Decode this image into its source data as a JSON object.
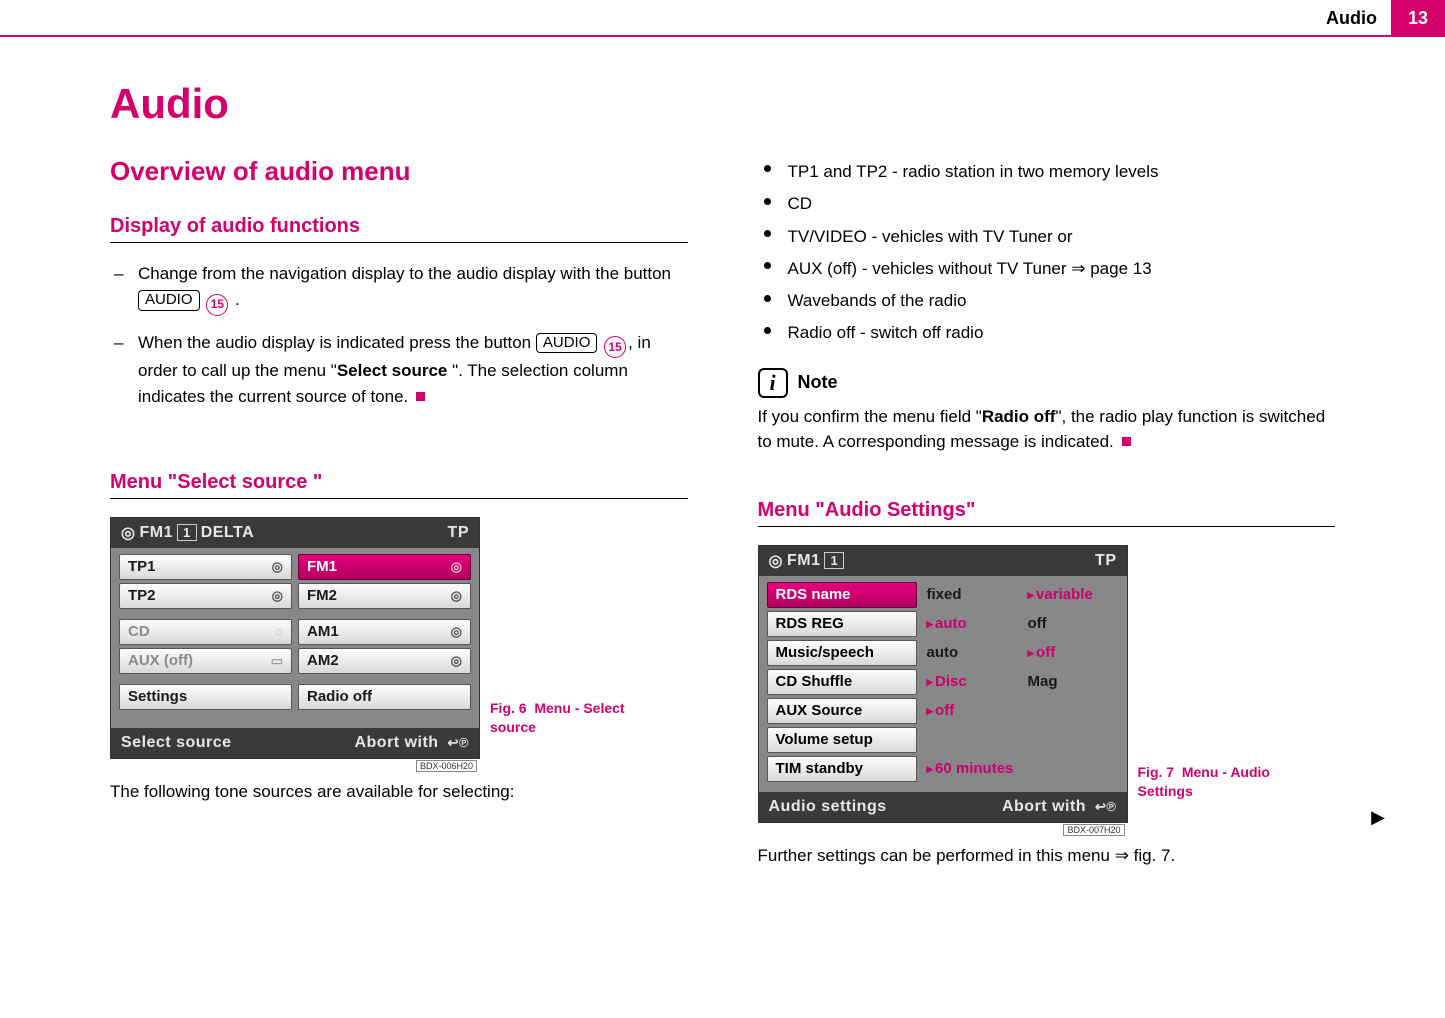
{
  "header": {
    "section": "Audio",
    "page_number": "13"
  },
  "h1": "Audio",
  "left": {
    "h2": "Overview of audio menu",
    "h3a": "Display of audio functions",
    "bullet1_pre": "Change from the navigation display to the audio display with the button ",
    "bullet1_btn": "AUDIO",
    "bullet1_ref": "15",
    "bullet1_post": " .",
    "bullet2_pre": "When the audio display is indicated press the button ",
    "bullet2_btn": "AUDIO",
    "bullet2_ref": "15",
    "bullet2_mid": ", in order to call up the menu \"",
    "bullet2_bold": "Select source ",
    "bullet2_post": "\". The selection column indicates the current source of tone.",
    "h3b": "Menu \"Select source \"",
    "fig6_num": "Fig. 6",
    "fig6_caption": "Menu - Select source",
    "after_fig": "The following tone sources are available for selecting:"
  },
  "right": {
    "dots": [
      "TP1 and TP2 - radio station in two memory levels",
      "CD",
      "TV/VIDEO - vehicles with TV Tuner or",
      "AUX (off) - vehicles without TV Tuner ⇒ page 13",
      "Wavebands of the radio",
      "Radio off - switch off radio"
    ],
    "note_label": "Note",
    "note_pre": "If you confirm the menu field \"",
    "note_bold": "Radio off",
    "note_post": "\", the radio play function is switched to mute. A corresponding message is indicated.",
    "h3": "Menu \"Audio Settings\"",
    "fig7_num": "Fig. 7",
    "fig7_caption": "Menu - Audio Settings",
    "after_fig_pre": "Further settings can be performed in this menu ",
    "after_fig_link": "⇒ fig. 7",
    "after_fig_post": "."
  },
  "device1": {
    "top_band": "FM1",
    "top_preset": "1",
    "top_station": "DELTA",
    "top_right": "TP",
    "left_items": [
      {
        "label": "TP1",
        "icon": "◎"
      },
      {
        "label": "TP2",
        "icon": "◎"
      }
    ],
    "left_items2": [
      {
        "label": "CD",
        "disabled": true,
        "icon": "◌"
      },
      {
        "label": "AUX (off)",
        "disabled": true,
        "icon": "▭"
      }
    ],
    "left_items3": [
      {
        "label": "Settings"
      }
    ],
    "right_items": [
      {
        "label": "FM1",
        "selected": true,
        "icon": "◎"
      },
      {
        "label": "FM2",
        "icon": "◎"
      }
    ],
    "right_items2": [
      {
        "label": "AM1",
        "icon": "◎"
      },
      {
        "label": "AM2",
        "icon": "◎"
      }
    ],
    "right_items3": [
      {
        "label": "Radio off"
      }
    ],
    "bottom_left": "Select source",
    "bottom_right": "Abort with",
    "code": "BDX-006H20"
  },
  "device2": {
    "top_band": "FM1",
    "top_preset": "1",
    "top_right": "TP",
    "rows": [
      {
        "label": "RDS name",
        "selected": true,
        "a": "fixed",
        "b": "variable",
        "sel": "b"
      },
      {
        "label": "RDS REG",
        "a": "auto",
        "b": "off",
        "sel": "a"
      },
      {
        "label": "Music/speech",
        "a": "auto",
        "b": "off",
        "sel": "b"
      },
      {
        "label": "CD Shuffle",
        "a": "Disc",
        "b": "Mag",
        "sel": "a"
      },
      {
        "label": "AUX Source",
        "a": "off",
        "b": "",
        "sel": "a"
      },
      {
        "label": "Volume setup",
        "a": "",
        "b": "",
        "sel": ""
      },
      {
        "label": "TIM standby",
        "a": "60 minutes",
        "b": "",
        "sel": "a",
        "wide": true
      }
    ],
    "bottom_left": "Audio settings",
    "bottom_right": "Abort with",
    "code": "BDX-007H20"
  }
}
